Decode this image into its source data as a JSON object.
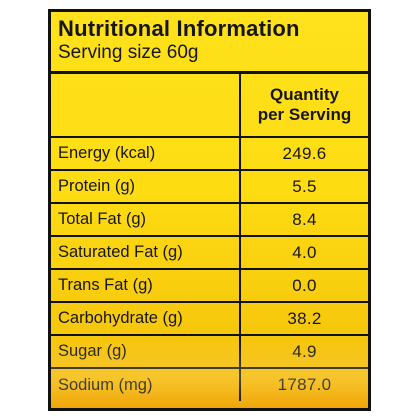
{
  "panel": {
    "title": "Nutritional Information",
    "serving_size": "Serving size 60g",
    "column_header_line1": "Quantity",
    "column_header_line2": "per Serving"
  },
  "rows": [
    {
      "nutrient": "Energy (kcal)",
      "value": "249.6"
    },
    {
      "nutrient": "Protein (g)",
      "value": "5.5"
    },
    {
      "nutrient": "Total Fat (g)",
      "value": "8.4"
    },
    {
      "nutrient": "Saturated Fat (g)",
      "value": "4.0"
    },
    {
      "nutrient": "Trans Fat (g)",
      "value": "0.0"
    },
    {
      "nutrient": "Carbohydrate (g)",
      "value": "38.2"
    },
    {
      "nutrient": "Sugar (g)",
      "value": "4.9"
    },
    {
      "nutrient": "Sodium (mg)",
      "value": "1787.0"
    }
  ],
  "colors": {
    "background": "#fddc12",
    "border": "#111111",
    "text": "#161616"
  }
}
